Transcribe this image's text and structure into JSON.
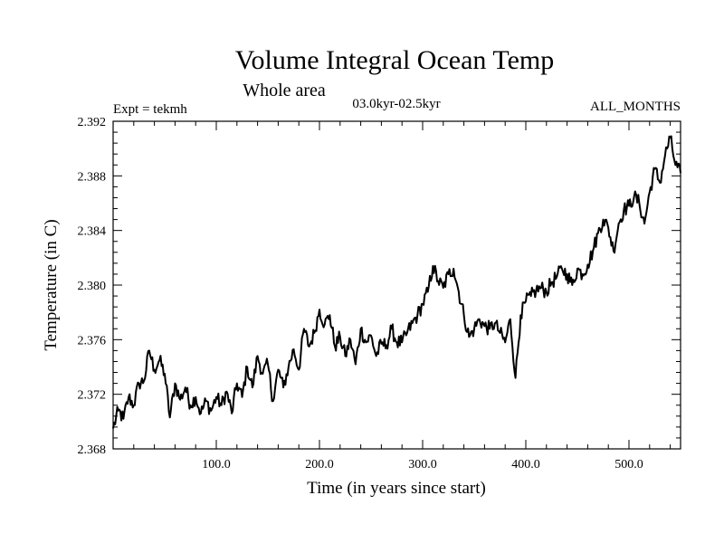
{
  "chart_data": {
    "type": "line",
    "title": "Volume Integral Ocean Temp",
    "subtitle": "Whole area",
    "period": "03.0kyr-02.5kyr",
    "experiment": "Expt = tekmh",
    "months": "ALL_MONTHS",
    "xlabel": "Time (in years since start)",
    "ylabel": "Temperature (in C)",
    "xlim": [
      0,
      550
    ],
    "ylim": [
      2.368,
      2.392
    ],
    "xticks": [
      100,
      200,
      300,
      400,
      500
    ],
    "xtick_labels": [
      "100.0",
      "200.0",
      "300.0",
      "400.0",
      "500.0"
    ],
    "yticks": [
      2.368,
      2.372,
      2.376,
      2.38,
      2.384,
      2.388,
      2.392
    ],
    "ytick_labels": [
      "2.368",
      "2.372",
      "2.376",
      "2.380",
      "2.384",
      "2.388",
      "2.392"
    ],
    "line_color": "#000000",
    "series": [
      {
        "name": "Volume integral ocean temperature",
        "x": [
          0,
          5,
          10,
          15,
          20,
          25,
          30,
          35,
          40,
          45,
          50,
          55,
          60,
          65,
          70,
          75,
          80,
          85,
          90,
          95,
          100,
          105,
          110,
          115,
          120,
          125,
          130,
          135,
          140,
          145,
          150,
          155,
          160,
          165,
          170,
          175,
          180,
          185,
          190,
          195,
          200,
          205,
          210,
          215,
          220,
          225,
          230,
          235,
          240,
          245,
          250,
          255,
          260,
          265,
          270,
          275,
          280,
          285,
          290,
          295,
          300,
          305,
          310,
          315,
          320,
          325,
          330,
          335,
          340,
          345,
          350,
          355,
          360,
          365,
          370,
          375,
          380,
          385,
          390,
          395,
          400,
          405,
          410,
          415,
          420,
          425,
          430,
          435,
          440,
          445,
          450,
          455,
          460,
          465,
          470,
          475,
          480,
          485,
          490,
          495,
          500,
          505,
          510,
          515,
          520,
          525,
          530,
          535,
          540,
          545,
          550
        ],
        "values": [
          2.3695,
          2.3708,
          2.3702,
          2.3718,
          2.3712,
          2.3728,
          2.373,
          2.3752,
          2.3738,
          2.3745,
          2.3735,
          2.3703,
          2.3728,
          2.3716,
          2.3725,
          2.3712,
          2.3718,
          2.3706,
          2.3715,
          2.3708,
          2.3718,
          2.3712,
          2.3722,
          2.3706,
          2.3728,
          2.3718,
          2.374,
          2.3725,
          2.3748,
          2.3735,
          2.3742,
          2.3715,
          2.3738,
          2.3725,
          2.374,
          2.3753,
          2.3738,
          2.3768,
          2.3755,
          2.3765,
          2.3782,
          2.3771,
          2.3778,
          2.3755,
          2.3762,
          2.3748,
          2.376,
          2.3742,
          2.3768,
          2.3758,
          2.3763,
          2.3748,
          2.3757,
          2.3756,
          2.3768,
          2.3758,
          2.3758,
          2.3765,
          2.3772,
          2.3778,
          2.3786,
          2.3795,
          2.3814,
          2.3803,
          2.3798,
          2.3808,
          2.3812,
          2.3795,
          2.3778,
          2.3762,
          2.3768,
          2.3775,
          2.377,
          2.3768,
          2.3772,
          2.3765,
          2.3758,
          2.3775,
          2.3732,
          2.3778,
          2.3788,
          2.3792,
          2.3796,
          2.3798,
          2.3795,
          2.3802,
          2.3806,
          2.3812,
          2.3808,
          2.38,
          2.3812,
          2.3808,
          2.3815,
          2.3825,
          2.3838,
          2.3848,
          2.3842,
          2.3825,
          2.3845,
          2.3855,
          2.3858,
          2.3865,
          2.386,
          2.3845,
          2.3868,
          2.3885,
          2.3875,
          2.3895,
          2.3908,
          2.3888,
          2.3882
        ]
      }
    ]
  }
}
